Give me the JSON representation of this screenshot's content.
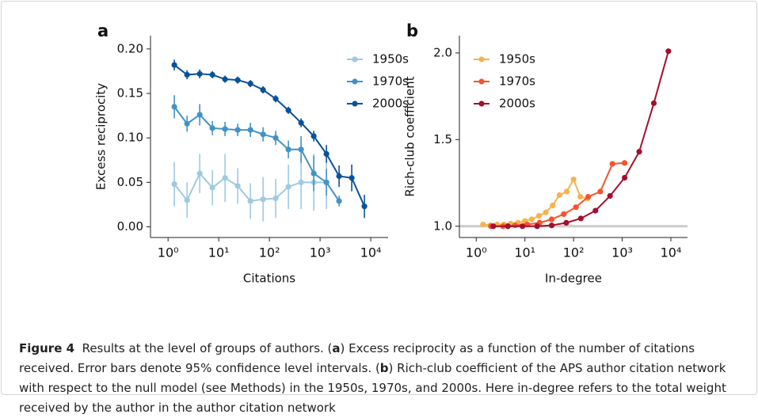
{
  "chart_data": [
    {
      "type": "line",
      "panel_label": "a",
      "xlabel": "Citations",
      "ylabel": "Excess reciprocity",
      "xscale": "log",
      "xlim": [
        0.45,
        22000
      ],
      "ylim": [
        -0.012,
        0.215
      ],
      "xticks": [
        {
          "value": 1,
          "label": "10⁰"
        },
        {
          "value": 10,
          "label": "10¹"
        },
        {
          "value": 100,
          "label": "10²"
        },
        {
          "value": 1000,
          "label": "10³"
        },
        {
          "value": 10000,
          "label": "10⁴"
        }
      ],
      "yticks": [
        {
          "value": 0,
          "label": "0.00"
        },
        {
          "value": 0.05,
          "label": "0.05"
        },
        {
          "value": 0.1,
          "label": "0.10"
        },
        {
          "value": 0.15,
          "label": "0.15"
        },
        {
          "value": 0.2,
          "label": "0.20"
        }
      ],
      "legend": "upper right",
      "series": [
        {
          "name": "1950s",
          "color": "#9ecae1",
          "x": [
            1.33,
            2.37,
            4.22,
            7.5,
            13.3,
            23.7,
            42.2,
            75,
            133,
            237,
            422,
            750,
            1334
          ],
          "values": [
            0.048,
            0.03,
            0.06,
            0.044,
            0.055,
            0.046,
            0.029,
            0.031,
            0.032,
            0.045,
            0.05,
            0.05,
            0.05
          ],
          "errors": [
            0.025,
            0.02,
            0.022,
            0.02,
            0.027,
            0.02,
            0.02,
            0.025,
            0.022,
            0.025,
            0.03,
            0.032,
            0.03
          ]
        },
        {
          "name": "1970s",
          "color": "#4292c6",
          "x": [
            1.33,
            2.37,
            4.22,
            7.5,
            13.3,
            23.7,
            42.2,
            75,
            133,
            237,
            422,
            750,
            1334,
            2371
          ],
          "values": [
            0.135,
            0.116,
            0.126,
            0.111,
            0.11,
            0.109,
            0.109,
            0.104,
            0.1,
            0.087,
            0.087,
            0.06,
            0.05,
            0.029
          ],
          "errors": [
            0.013,
            0.009,
            0.012,
            0.008,
            0.008,
            0.007,
            0.008,
            0.008,
            0.008,
            0.01,
            0.015,
            0.02,
            0.015,
            0.006
          ]
        },
        {
          "name": "2000s",
          "color": "#08519c",
          "x": [
            1.33,
            2.37,
            4.22,
            7.5,
            13.3,
            23.7,
            42.2,
            75,
            133,
            237,
            422,
            750,
            1334,
            2371,
            4217,
            7499
          ],
          "values": [
            0.182,
            0.171,
            0.172,
            0.171,
            0.166,
            0.165,
            0.161,
            0.154,
            0.144,
            0.131,
            0.117,
            0.102,
            0.082,
            0.057,
            0.055,
            0.023
          ],
          "errors": [
            0.006,
            0.005,
            0.005,
            0.004,
            0.004,
            0.004,
            0.004,
            0.004,
            0.004,
            0.004,
            0.005,
            0.006,
            0.01,
            0.012,
            0.015,
            0.013
          ]
        }
      ]
    },
    {
      "type": "line",
      "panel_label": "b",
      "xlabel": "In-degree",
      "ylabel": "Rich-club coefficient",
      "xscale": "log",
      "xlim": [
        0.45,
        22000
      ],
      "ylim": [
        0.935,
        2.1
      ],
      "xticks": [
        {
          "value": 1,
          "label": "10⁰"
        },
        {
          "value": 10,
          "label": "10¹"
        },
        {
          "value": 100,
          "label": "10²"
        },
        {
          "value": 1000,
          "label": "10³"
        },
        {
          "value": 10000,
          "label": "10⁴"
        }
      ],
      "yticks": [
        {
          "value": 1,
          "label": "1.0"
        },
        1.5,
        {
          "value": 2,
          "label": "2.0"
        }
      ],
      "reference_line": 1,
      "reference_color": "#cccccc",
      "legend": "upper left",
      "series": [
        {
          "name": "1950s",
          "color": "#f7b24d",
          "x": [
            1.38,
            1.95,
            2.69,
            3.72,
            5.13,
            7.24,
            10,
            13.8,
            19.5,
            26.9,
            37.2,
            51.3,
            72.4,
            100,
            138,
            195
          ],
          "values": [
            1.01,
            1.005,
            1.01,
            1.01,
            1.015,
            1.02,
            1.03,
            1.04,
            1.06,
            1.08,
            1.12,
            1.18,
            1.2,
            1.27,
            1.17,
            1.16
          ]
        },
        {
          "name": "1970s",
          "color": "#f2542d",
          "x": [
            2,
            3.55,
            6.3,
            11.2,
            20,
            35.5,
            63,
            112,
            200,
            355,
            631,
            1122
          ],
          "values": [
            1.0,
            1.0,
            1.005,
            1.01,
            1.02,
            1.04,
            1.07,
            1.11,
            1.17,
            1.2,
            1.36,
            1.365
          ]
        },
        {
          "name": "2000s",
          "color": "#a50f2d",
          "x": [
            2.24,
            4.47,
            8.91,
            17.8,
            35.5,
            70.8,
            141,
            282,
            562,
            1122,
            2239,
            4467,
            8913
          ],
          "values": [
            1.0,
            1.0,
            1.0,
            1.0,
            1.005,
            1.02,
            1.045,
            1.09,
            1.175,
            1.28,
            1.43,
            1.71,
            2.01
          ]
        }
      ]
    }
  ],
  "caption": [
    {
      "text": "Figure 4",
      "bold": true
    },
    {
      "text": "  Results at the level of groups of authors. ("
    },
    {
      "text": "a",
      "bold": true
    },
    {
      "text": ") Excess reciprocity as a function of the number of citations received. Error bars denote 95% confidence level intervals. ("
    },
    {
      "text": "b",
      "bold": true
    },
    {
      "text": ") Rich-club coefficient of the APS author citation network with respect to the null model (see Methods) in the 1950s, 1970s, and 2000s. Here in-degree refers to the total weight received by the author in the author citation network"
    }
  ]
}
